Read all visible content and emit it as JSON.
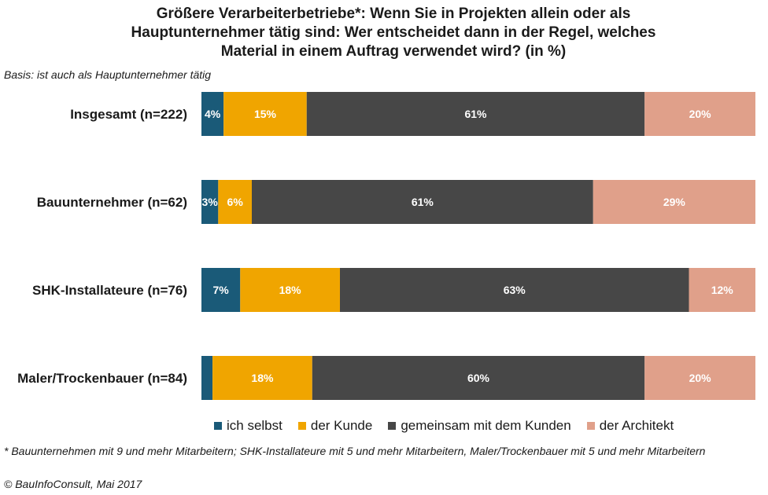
{
  "title": {
    "line1": "Größere Verarbeiterbetriebe*: Wenn Sie in Projekten allein oder als",
    "line2": "Hauptunternehmer tätig sind: Wer entscheidet dann in der Regel, welches",
    "line3": "Material in einem Auftrag verwendet wird? (in %)"
  },
  "basis": "Basis: ist auch als Hauptunternehmer tätig",
  "footnote": "* Bauunternehmen mit 9 und mehr Mitarbeitern; SHK-Installateure mit 5 und mehr Mitarbeitern, Maler/Trockenbauer mit 5 und mehr Mitarbeitern",
  "copyright": "© BauInfoConsult, Mai 2017",
  "chart_data": {
    "type": "bar",
    "orientation": "horizontal",
    "stacked": true,
    "categories": [
      "Insgesamt (n=222)",
      "Bauunternehmer (n=62)",
      "SHK-Installateure (n=76)",
      "Maler/Trockenbauer (n=84)"
    ],
    "series": [
      {
        "name": "ich selbst",
        "color": "#1a5a78",
        "values": [
          4,
          3,
          7,
          2
        ],
        "labels": [
          "4%",
          "3%",
          "7%",
          ""
        ]
      },
      {
        "name": "der Kunde",
        "color": "#f0a500",
        "values": [
          15,
          6,
          18,
          18
        ],
        "labels": [
          "15%",
          "6%",
          "18%",
          "18%"
        ]
      },
      {
        "name": "gemeinsam mit dem Kunden",
        "color": "#474747",
        "values": [
          61,
          61,
          63,
          60
        ],
        "labels": [
          "61%",
          "61%",
          "63%",
          "60%"
        ]
      },
      {
        "name": "der Architekt",
        "color": "#e0a08a",
        "values": [
          20,
          29,
          12,
          20
        ],
        "labels": [
          "20%",
          "29%",
          "12%",
          "20%"
        ]
      }
    ],
    "legend": "bottom",
    "grid": false
  }
}
